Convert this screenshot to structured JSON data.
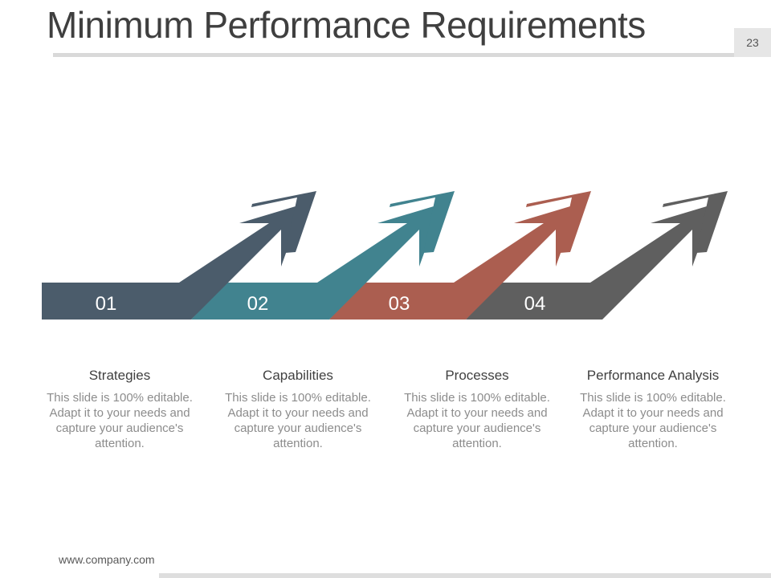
{
  "slide": {
    "title": "Minimum Performance Requirements",
    "page_number": "23",
    "footer_url": "www.company.com"
  },
  "steps": [
    {
      "number": "01",
      "title": "Strategies",
      "description": "This slide is 100% editable. Adapt it to your needs and capture your audience's attention.",
      "color": "#4b5c6b"
    },
    {
      "number": "02",
      "title": "Capabilities",
      "description": "This slide is 100% editable. Adapt it to your needs and capture your audience's attention.",
      "color": "#41838f"
    },
    {
      "number": "03",
      "title": "Processes",
      "description": "This slide is 100% editable. Adapt it to your needs and capture your audience's attention.",
      "color": "#ab5e50"
    },
    {
      "number": "04",
      "title": "Performance Analysis",
      "description": "This slide is 100% editable. Adapt it to your needs and capture your audience's attention.",
      "color": "#5f5f5f"
    }
  ]
}
